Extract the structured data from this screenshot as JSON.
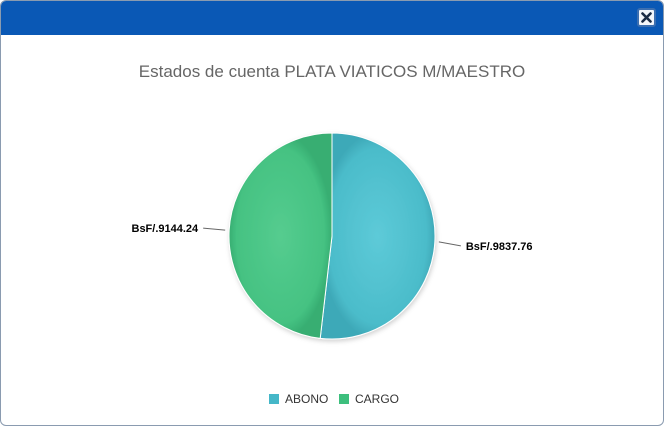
{
  "dialog": {
    "close_icon": "close-icon"
  },
  "colors": {
    "titlebar": "#0a58b5",
    "abono": "#45b7c8",
    "cargo": "#3dbf7d"
  },
  "chart_data": {
    "type": "pie",
    "title": "Estados de cuenta PLATA VIATICOS M/MAESTRO",
    "series": [
      {
        "name": "ABONO",
        "value": 9837.76,
        "label": "BsF/.9837.76",
        "color": "#45b7c8"
      },
      {
        "name": "CARGO",
        "value": 9144.24,
        "label": "BsF/.9144.24",
        "color": "#3dbf7d"
      }
    ],
    "legend_position": "bottom"
  }
}
